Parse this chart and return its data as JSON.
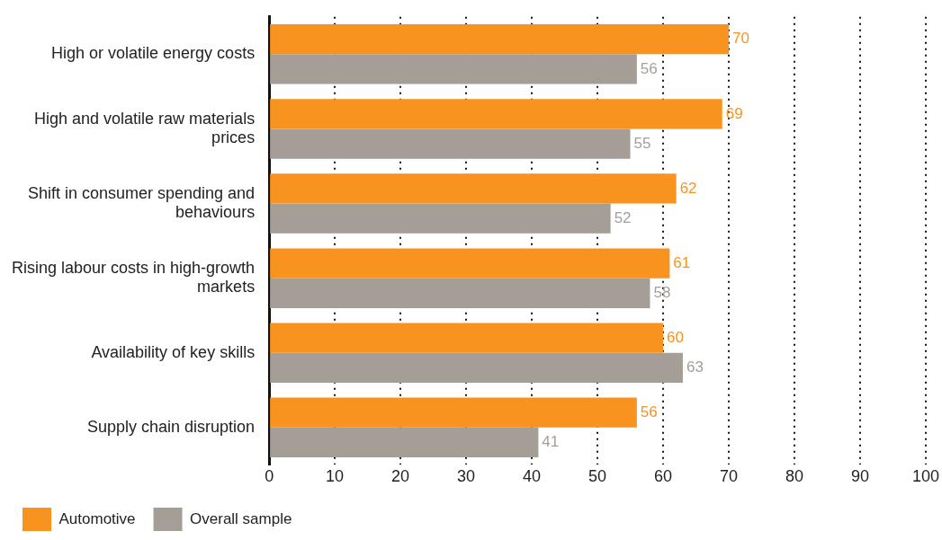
{
  "chart_data": {
    "type": "bar",
    "orientation": "horizontal",
    "categories": [
      "High or volatile energy costs",
      "High and volatile raw materials prices",
      "Shift in consumer spending and behaviours",
      "Rising labour costs in high-growth markets",
      "Availability of key skills",
      "Supply chain disruption"
    ],
    "series": [
      {
        "name": "Automotive",
        "color": "#f7931e",
        "values": [
          70,
          69,
          62,
          61,
          60,
          56
        ]
      },
      {
        "name": "Overall sample",
        "color": "#a59e97",
        "values": [
          56,
          55,
          52,
          58,
          63,
          41
        ]
      }
    ],
    "xlim": [
      0,
      100
    ],
    "xticks": [
      0,
      10,
      20,
      30,
      40,
      50,
      60,
      70,
      80,
      90,
      100
    ],
    "grid": "x",
    "legend": "bottom",
    "data_labels": true
  }
}
